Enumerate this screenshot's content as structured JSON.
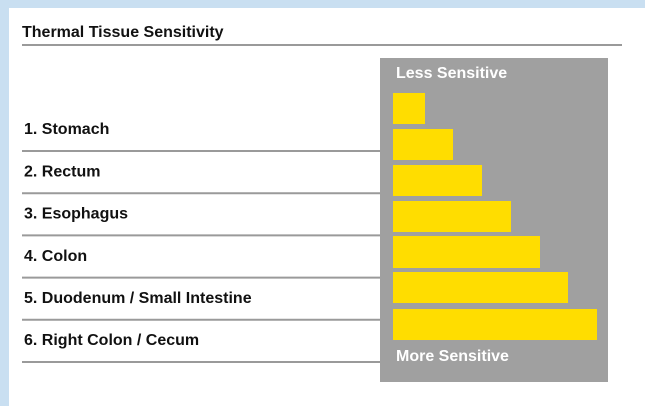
{
  "header": {
    "title": "Thermal Tissue Sensitivity"
  },
  "scale": {
    "top": "Less Sensitive",
    "bottom": "More Sensitive"
  },
  "items": [
    "1. Stomach",
    "2. Rectum",
    "3. Esophagus",
    "4. Colon",
    "5. Duodenum / Small Intestine",
    "6. Right Colon / Cecum"
  ]
}
